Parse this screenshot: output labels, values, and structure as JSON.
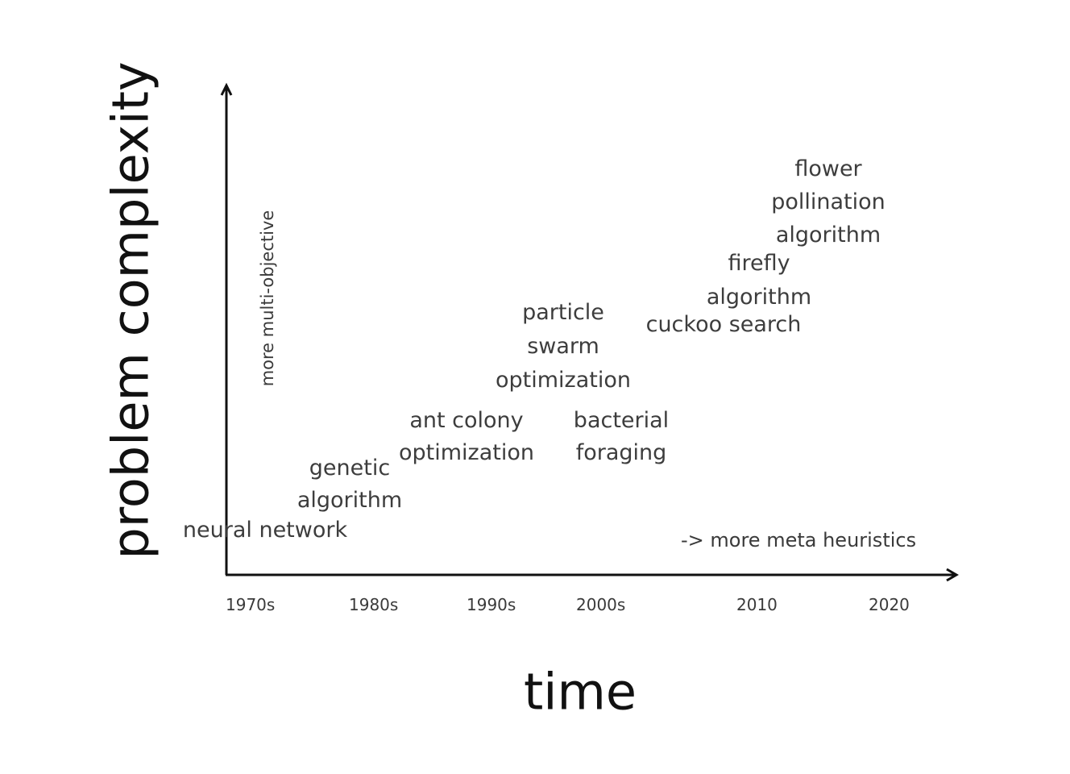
{
  "axes": {
    "y_label": "problem complexity",
    "x_label": "time",
    "x_ticks": [
      "1970s",
      "1980s",
      "1990s",
      "2000s",
      "2010",
      "2020"
    ]
  },
  "notes": {
    "vertical": "more multi-objective",
    "horizontal": "-> more meta heuristics"
  },
  "algorithms": [
    {
      "lines": [
        "neural network"
      ]
    },
    {
      "lines": [
        "genetic",
        "algorithm"
      ]
    },
    {
      "lines": [
        "ant colony",
        "optimization"
      ]
    },
    {
      "lines": [
        "particle",
        "swarm",
        "optimization"
      ]
    },
    {
      "lines": [
        "bacterial",
        "foraging"
      ]
    },
    {
      "lines": [
        "cuckoo search"
      ]
    },
    {
      "lines": [
        "firefly",
        "algorithm"
      ]
    },
    {
      "lines": [
        "flower",
        "pollination",
        "algorithm"
      ]
    }
  ],
  "colors": {
    "axis": "#111111",
    "text": "#3a3a3a"
  }
}
